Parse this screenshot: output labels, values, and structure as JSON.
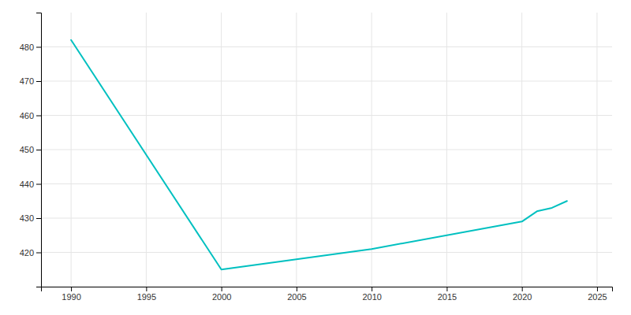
{
  "chart_data": {
    "type": "line",
    "x": [
      1990,
      2000,
      2010,
      2020,
      2021,
      2022,
      2023
    ],
    "values": [
      482,
      415,
      421,
      429,
      432,
      433,
      435
    ],
    "color": "#00C0C0",
    "xlim": [
      1988,
      2026
    ],
    "ylim": [
      410,
      490
    ],
    "xticks": [
      1990,
      1995,
      2000,
      2005,
      2010,
      2015,
      2020,
      2025
    ],
    "yticks": [
      420,
      430,
      440,
      450,
      460,
      470,
      480
    ],
    "grid": true
  }
}
